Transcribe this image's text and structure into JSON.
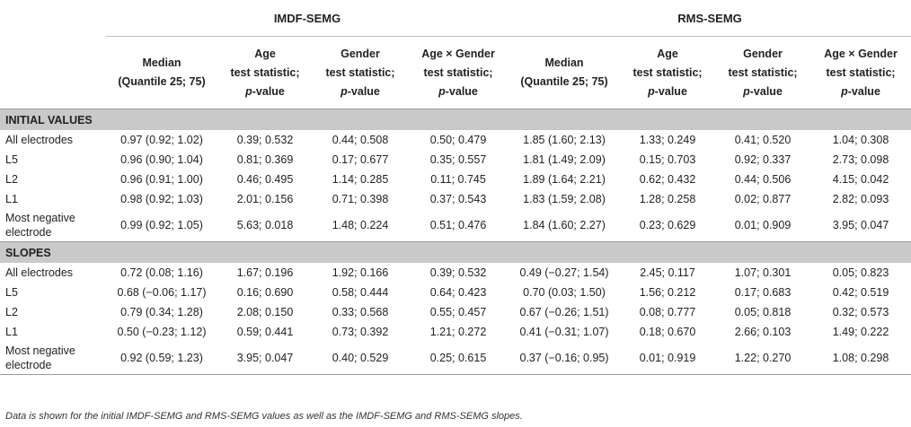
{
  "groups": {
    "imdf": "IMDF-SEMG",
    "rms": "RMS-SEMG"
  },
  "col_headers": {
    "median": [
      "Median",
      "(Quantile 25; 75)"
    ],
    "age": [
      "Age",
      "test statistic;",
      "p",
      "-value"
    ],
    "gender": [
      "Gender",
      "test statistic;",
      "p",
      "-value"
    ],
    "agexgender": [
      "Age × Gender",
      "test statistic;",
      "p",
      "-value"
    ]
  },
  "sections": [
    {
      "title": "INITIAL VALUES",
      "rows": [
        {
          "label": [
            "All electrodes"
          ],
          "cells": [
            "0.97 (0.92; 1.02)",
            "0.39; 0.532",
            "0.44; 0.508",
            "0.50; 0.479",
            "1.85 (1.60; 2.13)",
            "1.33; 0.249",
            "0.41; 0.520",
            "1.04; 0.308"
          ]
        },
        {
          "label": [
            "L5"
          ],
          "cells": [
            "0.96 (0.90; 1.04)",
            "0.81; 0.369",
            "0.17; 0.677",
            "0.35; 0.557",
            "1.81 (1.49; 2.09)",
            "0.15; 0.703",
            "0.92; 0.337",
            "2.73; 0.098"
          ]
        },
        {
          "label": [
            "L2"
          ],
          "cells": [
            "0.96 (0.91; 1.00)",
            "0.46; 0.495",
            "1.14; 0.285",
            "0.11; 0.745",
            "1.89 (1.64; 2.21)",
            "0.62; 0.432",
            "0.44; 0.506",
            "4.15; 0.042"
          ]
        },
        {
          "label": [
            "L1"
          ],
          "cells": [
            "0.98 (0.92; 1.03)",
            "2.01; 0.156",
            "0.71; 0.398",
            "0.37; 0.543",
            "1.83 (1.59; 2.08)",
            "1.28; 0.258",
            "0.02; 0.877",
            "2.82; 0.093"
          ]
        },
        {
          "label": [
            "Most negative",
            "electrode"
          ],
          "cells": [
            "0.99 (0.92; 1.05)",
            "5.63; 0.018",
            "1.48; 0.224",
            "0.51; 0.476",
            "1.84 (1.60; 2.27)",
            "0.23; 0.629",
            "0.01; 0.909",
            "3.95; 0.047"
          ]
        }
      ]
    },
    {
      "title": "SLOPES",
      "rows": [
        {
          "label": [
            "All electrodes"
          ],
          "cells": [
            "0.72 (0.08; 1.16)",
            "1.67; 0.196",
            "1.92; 0.166",
            "0.39; 0.532",
            "0.49 (−0.27; 1.54)",
            "2.45; 0.117",
            "1.07; 0.301",
            "0.05; 0.823"
          ]
        },
        {
          "label": [
            "L5"
          ],
          "cells": [
            "0.68 (−0.06; 1.17)",
            "0.16; 0.690",
            "0.58; 0.444",
            "0.64; 0.423",
            "0.70 (0.03; 1.50)",
            "1.56; 0.212",
            "0.17; 0.683",
            "0.42; 0.519"
          ]
        },
        {
          "label": [
            "L2"
          ],
          "cells": [
            "0.79 (0.34; 1.28)",
            "2.08; 0.150",
            "0.33; 0.568",
            "0.55; 0.457",
            "0.67 (−0.26; 1.51)",
            "0.08; 0.777",
            "0.05; 0.818",
            "0.32; 0.573"
          ]
        },
        {
          "label": [
            "L1"
          ],
          "cells": [
            "0.50 (−0.23; 1.12)",
            "0.59; 0.441",
            "0.73; 0.392",
            "1.21; 0.272",
            "0.41 (−0.31; 1.07)",
            "0.18; 0.670",
            "2.66; 0.103",
            "1.49; 0.222"
          ]
        },
        {
          "label": [
            "Most negative",
            "electrode"
          ],
          "cells": [
            "0.92 (0.59; 1.23)",
            "3.95; 0.047",
            "0.40; 0.529",
            "0.25; 0.615",
            "0.37 (−0.16; 0.95)",
            "0.01; 0.919",
            "1.22; 0.270",
            "1.08; 0.298"
          ]
        }
      ]
    }
  ],
  "footnote": "Data is shown for the initial IMDF-SEMG and RMS-SEMG values as well as the IMDF-SEMG and RMS-SEMG slopes."
}
